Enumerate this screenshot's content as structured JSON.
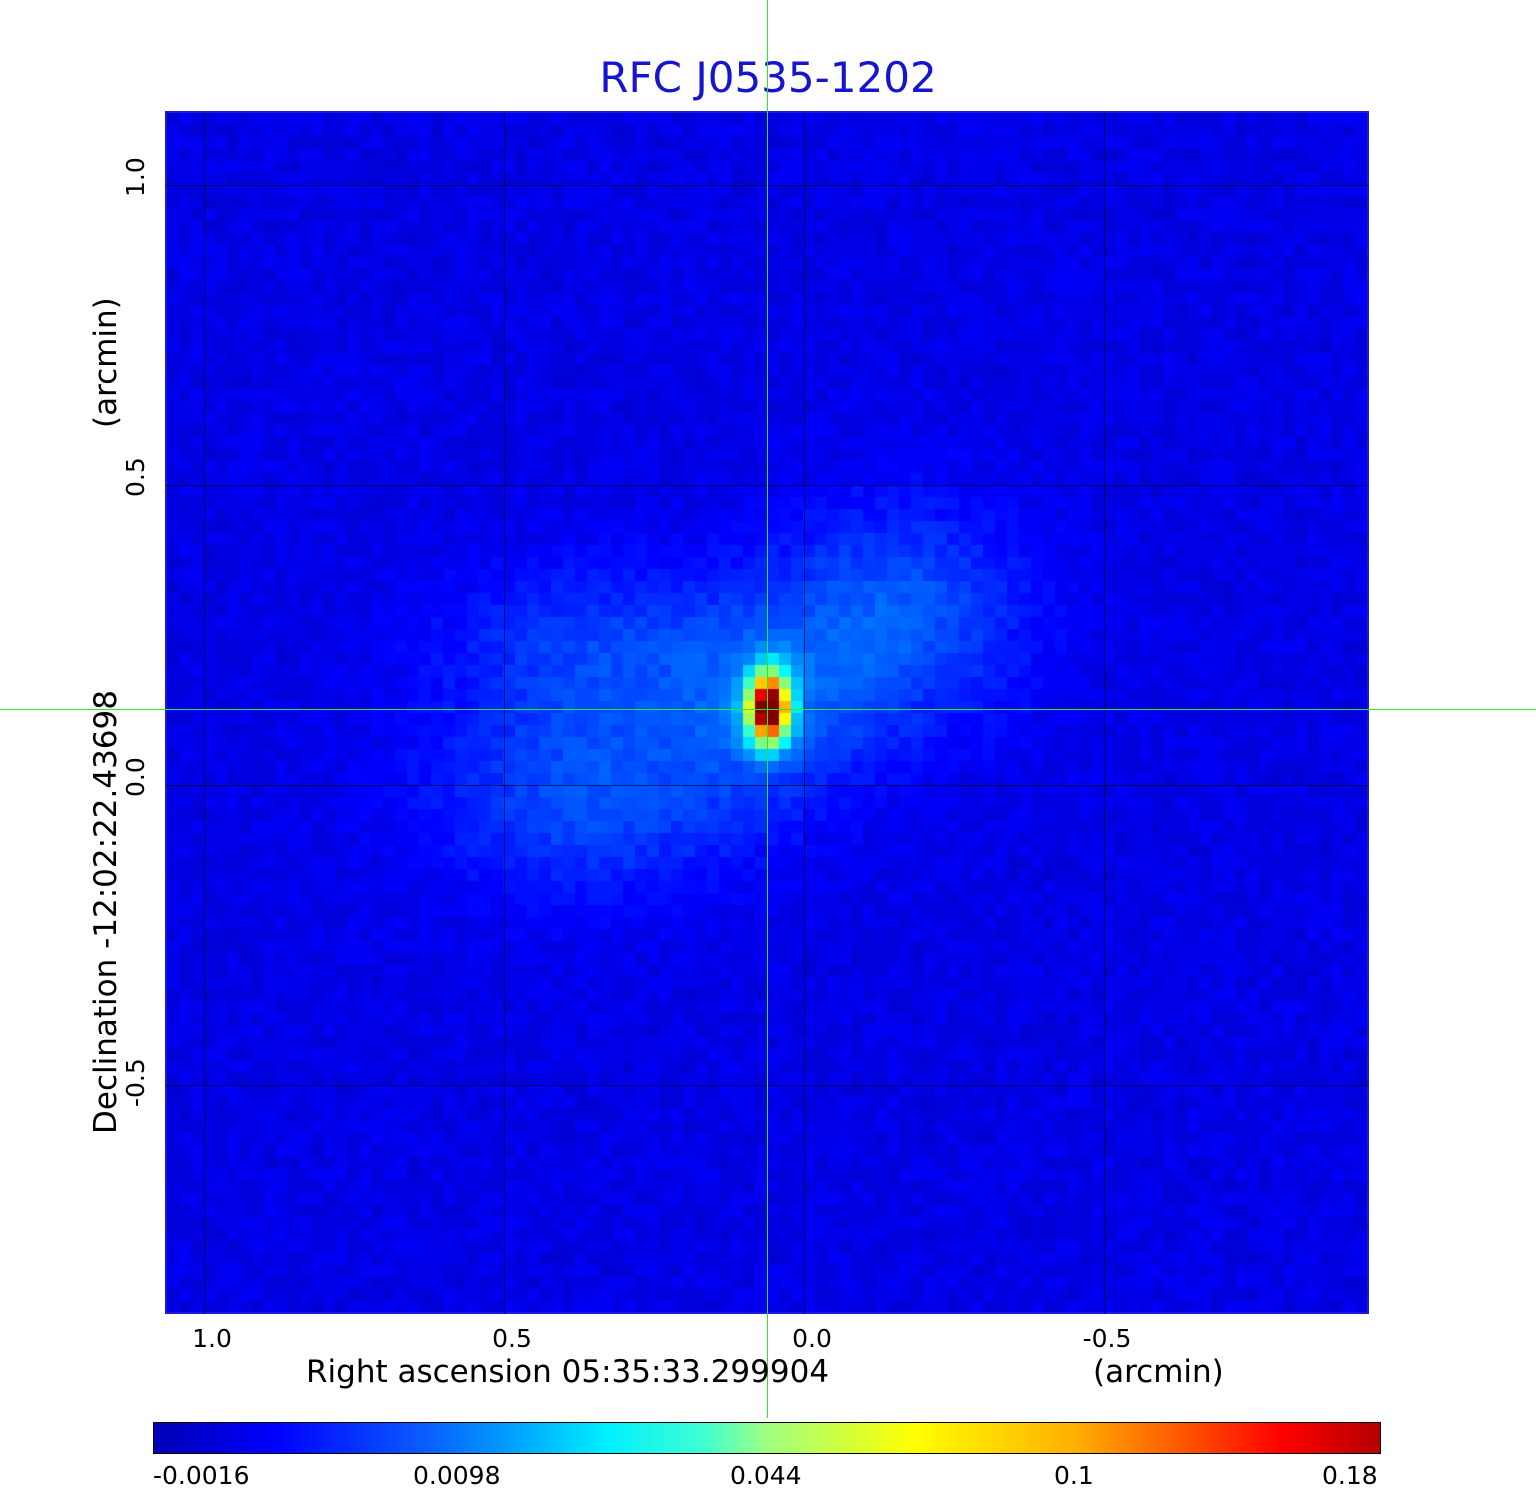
{
  "chart_data": {
    "type": "heatmap",
    "title": "RFC J0535-1202",
    "xlabel": "Right ascension  05:35:33.299904",
    "xlabel_unit": "(arcmin)",
    "ylabel": "Declination  -12:02:22.43698",
    "ylabel_unit": "(arcmin)",
    "x_ticks": [
      "1.0",
      "0.5",
      "0.0",
      "-0.5"
    ],
    "x_tick_values": [
      1.0,
      0.5,
      0.0,
      -0.5
    ],
    "y_ticks": [
      "1.0",
      "0.5",
      "0.0",
      "-0.5"
    ],
    "y_tick_values": [
      1.0,
      0.5,
      0.0,
      -0.5
    ],
    "xlim": [
      1.065,
      -0.94
    ],
    "ylim": [
      -0.88,
      1.125
    ],
    "grid": true,
    "crosshair": {
      "x": 0.06,
      "y": 0.125
    },
    "peak": {
      "x": 0.06,
      "y": 0.13,
      "value": 0.18
    },
    "colorbar": {
      "ticks": [
        "-0.0016",
        "0.0098",
        "0.044",
        "0.1",
        "0.18"
      ],
      "tick_values": [
        -0.0016,
        0.0098,
        0.044,
        0.1,
        0.18
      ],
      "colormap": "jet"
    },
    "colors": {
      "title": "#1414d2",
      "crosshair": "#2ee62e",
      "background_map": "#0a3cf0"
    }
  }
}
